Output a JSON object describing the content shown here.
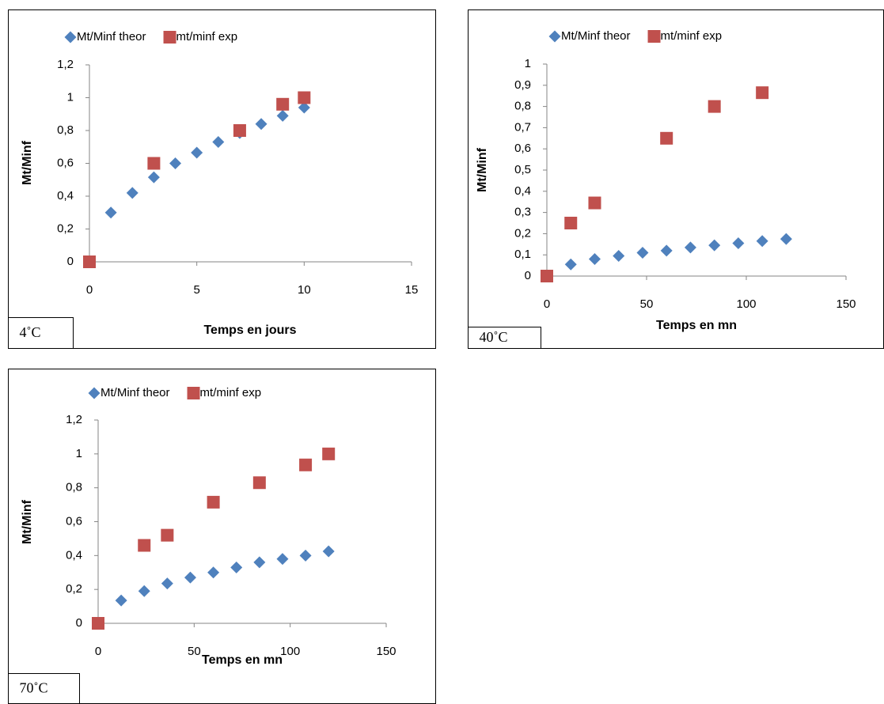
{
  "chart_data": [
    {
      "type": "scatter",
      "x_label": "Temps en jours",
      "y_label": "Mt/Minf",
      "note": "4˚C",
      "legend": "top",
      "series": [
        {
          "name": "Mt/Minf theor",
          "color": "#4f81bd",
          "marker": "diamond",
          "x": [
            0,
            1,
            2,
            3,
            4,
            5,
            6,
            7,
            8,
            9,
            10
          ],
          "values": [
            0,
            0.3,
            0.42,
            0.515,
            0.6,
            0.665,
            0.73,
            0.785,
            0.84,
            0.89,
            0.94
          ]
        },
        {
          "name": "mt/minf exp",
          "color": "#c0504d",
          "marker": "square",
          "x": [
            0,
            3,
            7,
            9,
            10
          ],
          "values": [
            0,
            0.6,
            0.8,
            0.96,
            1.0
          ]
        }
      ],
      "xlim": [
        0,
        15
      ],
      "xticks": [
        0,
        5,
        10,
        15
      ],
      "ylim": [
        0,
        1.2
      ],
      "yticks": [
        0,
        {
          "value": 0.2,
          "label": "0,2"
        },
        {
          "value": 0.4,
          "label": "0,4"
        },
        {
          "value": 0.6,
          "label": "0,6"
        },
        {
          "value": 0.8,
          "label": "0,8"
        },
        1,
        {
          "value": 1.2,
          "label": "1,2"
        }
      ]
    },
    {
      "type": "scatter",
      "x_label": "Temps en mn",
      "y_label": "Mt/Minf",
      "note": "40˚C",
      "legend": "top",
      "series": [
        {
          "name": "Mt/Minf theor",
          "color": "#4f81bd",
          "marker": "diamond",
          "x": [
            0,
            12,
            24,
            36,
            48,
            60,
            72,
            84,
            96,
            108,
            120
          ],
          "values": [
            0,
            0.055,
            0.08,
            0.095,
            0.11,
            0.12,
            0.135,
            0.145,
            0.155,
            0.165,
            0.175
          ]
        },
        {
          "name": "mt/minf exp",
          "color": "#c0504d",
          "marker": "square",
          "x": [
            0,
            12,
            24,
            60,
            84,
            108
          ],
          "values": [
            0,
            0.25,
            0.345,
            0.65,
            0.8,
            0.865
          ]
        }
      ],
      "xlim": [
        0,
        150
      ],
      "xticks": [
        0,
        50,
        100,
        150
      ],
      "ylim": [
        0,
        1
      ],
      "yticks": [
        0,
        {
          "value": 0.1,
          "label": "0,1"
        },
        {
          "value": 0.2,
          "label": "0,2"
        },
        {
          "value": 0.3,
          "label": "0,3"
        },
        {
          "value": 0.4,
          "label": "0,4"
        },
        {
          "value": 0.5,
          "label": "0,5"
        },
        {
          "value": 0.6,
          "label": "0,6"
        },
        {
          "value": 0.7,
          "label": "0,7"
        },
        {
          "value": 0.8,
          "label": "0,8"
        },
        {
          "value": 0.9,
          "label": "0,9"
        },
        1
      ]
    },
    {
      "type": "scatter",
      "x_label": "Temps en mn",
      "y_label": "Mt/Minf",
      "note": "70˚C",
      "legend": "top",
      "series": [
        {
          "name": "Mt/Minf theor",
          "color": "#4f81bd",
          "marker": "diamond",
          "x": [
            0,
            12,
            24,
            36,
            48,
            60,
            72,
            84,
            96,
            108,
            120
          ],
          "values": [
            0,
            0.135,
            0.19,
            0.235,
            0.27,
            0.3,
            0.33,
            0.36,
            0.38,
            0.4,
            0.425
          ]
        },
        {
          "name": "mt/minf exp",
          "color": "#c0504d",
          "marker": "square",
          "x": [
            0,
            24,
            36,
            60,
            84,
            108,
            120
          ],
          "values": [
            0,
            0.46,
            0.52,
            0.715,
            0.83,
            0.935,
            1.0
          ]
        }
      ],
      "xlim": [
        0,
        150
      ],
      "xticks": [
        0,
        50,
        100,
        150
      ],
      "ylim": [
        0,
        1.2
      ],
      "yticks": [
        0,
        {
          "value": 0.2,
          "label": "0,2"
        },
        {
          "value": 0.4,
          "label": "0,4"
        },
        {
          "value": 0.6,
          "label": "0,6"
        },
        {
          "value": 0.8,
          "label": "0,8"
        },
        1,
        {
          "value": 1.2,
          "label": "1,2"
        }
      ]
    }
  ]
}
